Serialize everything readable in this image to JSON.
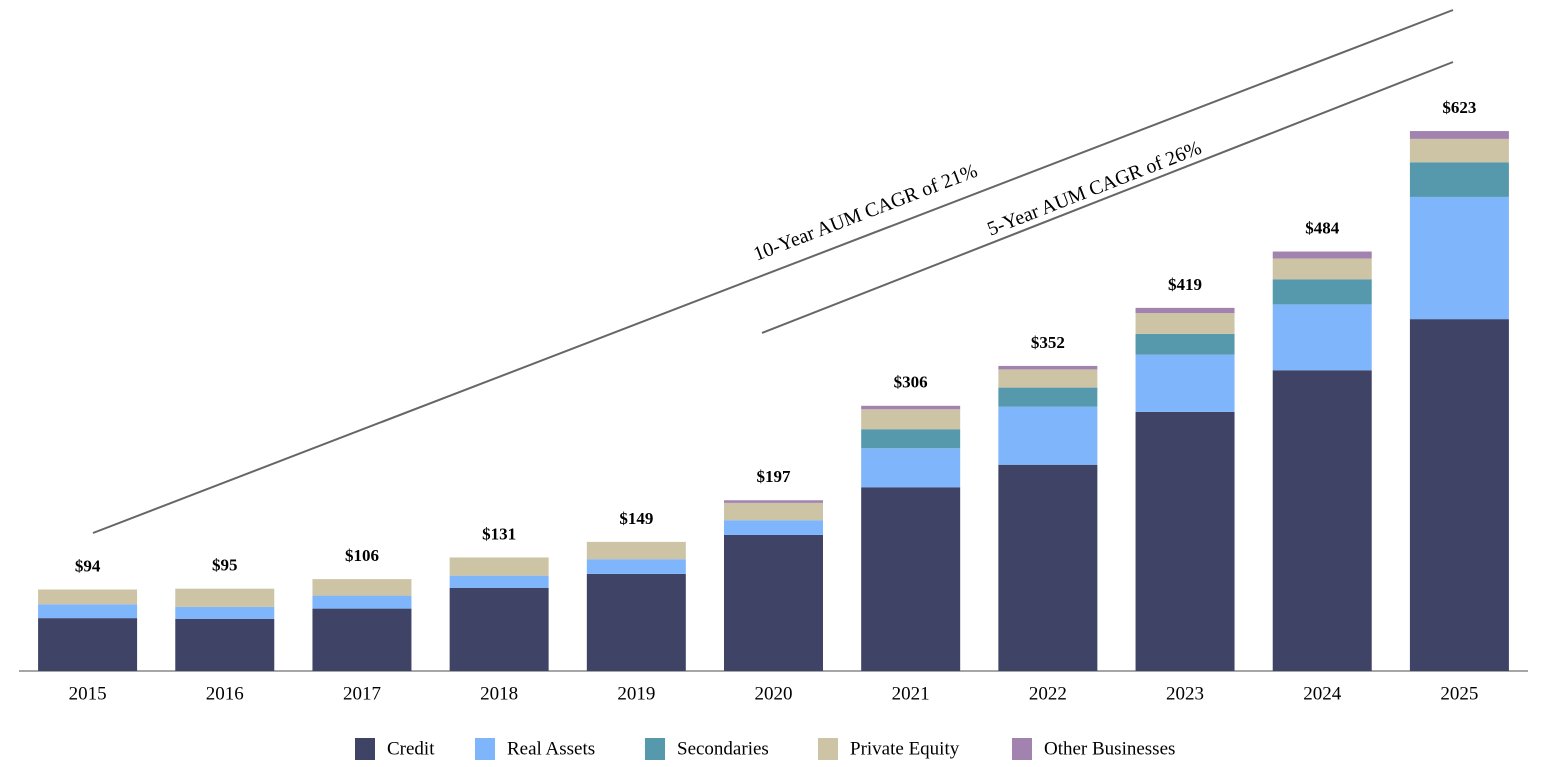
{
  "chart_data": {
    "type": "stacked-bar",
    "categories": [
      "2015",
      "2016",
      "2017",
      "2018",
      "2019",
      "2020",
      "2021",
      "2022",
      "2023",
      "2024",
      "2025"
    ],
    "series": [
      {
        "name": "Credit",
        "color": "#3f4466",
        "values": [
          61,
          60,
          72,
          96,
          112,
          157,
          212,
          238,
          299,
          347,
          406
        ]
      },
      {
        "name": "Real Assets",
        "color": "#7fb5fb",
        "values": [
          16,
          14,
          15,
          14,
          17,
          17,
          45,
          67,
          66,
          76,
          141
        ]
      },
      {
        "name": "Secondaries",
        "color": "#5799ac",
        "values": [
          null,
          null,
          null,
          null,
          null,
          null,
          22,
          22,
          24,
          29,
          40
        ]
      },
      {
        "name": "Private Equity",
        "color": "#cdc3a5",
        "values": [
          17,
          21,
          19,
          21,
          20,
          20,
          23,
          21,
          24,
          24,
          27
        ]
      },
      {
        "name": "Other Businesses",
        "color": "#a283b0",
        "values": [
          null,
          null,
          null,
          null,
          null,
          3,
          4,
          4,
          6,
          8,
          9
        ]
      }
    ],
    "totals": [
      94,
      95,
      106,
      131,
      149,
      197,
      306,
      352,
      419,
      484,
      623
    ],
    "total_labels": [
      "$94",
      "$95",
      "$106",
      "$131",
      "$149",
      "$197",
      "$306",
      "$352",
      "$419",
      "$484",
      "$623"
    ],
    "annotations": [
      "10-Year AUM CAGR of 21%",
      "5-Year AUM CAGR of 26%"
    ],
    "ylim": [
      0,
      720
    ],
    "legend": "bottom"
  }
}
